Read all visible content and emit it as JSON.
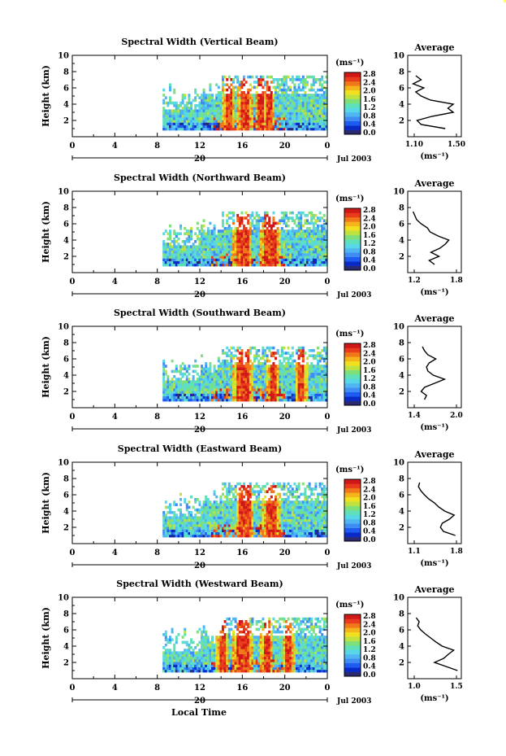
{
  "colors": {
    "colorbar": [
      "#2a2a72",
      "#0a2ac8",
      "#1e5bf0",
      "#3f8cf5",
      "#4fb6f2",
      "#58d8e6",
      "#5fe0b8",
      "#7fe07a",
      "#c0e23e",
      "#f0e020",
      "#f6b41c",
      "#f0781a",
      "#e83c1c",
      "#d01818"
    ],
    "background": "#ffffff",
    "line": "#000000"
  },
  "shared": {
    "colorbar_unit": "(ms⁻¹)",
    "colorbar_ticks": [
      "2.8",
      "2.4",
      "2.0",
      "1.6",
      "1.2",
      "0.8",
      "0.4",
      "0.0"
    ],
    "date_label": "Jul 2003",
    "day_label": "20",
    "x_axis_title": "Local Time",
    "avg_title": "Average",
    "avg_xlabel": "(ms⁻¹)"
  },
  "chart_data": [
    {
      "type": "heatmap",
      "title": "Spectral Width (Vertical Beam)",
      "ylabel": "Height (km)",
      "xlim": [
        0,
        24
      ],
      "ylim": [
        0,
        10
      ],
      "x_ticks": [
        "0",
        "4",
        "8",
        "12",
        "16",
        "20",
        "0"
      ],
      "y_ticks": [
        "2",
        "4",
        "6",
        "8",
        "10"
      ],
      "data_start_hour": 8.5,
      "data_top_km": 7.5,
      "red_streaks_hours": [
        14.6,
        16,
        16.3,
        17.7,
        18.4
      ],
      "average": {
        "x_ticks": [
          "1.10",
          "1.50"
        ],
        "xlim": [
          1.1,
          1.5
        ],
        "heights": [
          1.0,
          1.5,
          2.0,
          2.5,
          3.0,
          3.5,
          4.0,
          4.5,
          5.0,
          5.5,
          6.0,
          6.5,
          7.0,
          7.5
        ],
        "values": [
          1.38,
          1.2,
          1.17,
          1.28,
          1.44,
          1.4,
          1.44,
          1.27,
          1.2,
          1.16,
          1.22,
          1.14,
          1.2,
          1.16
        ]
      }
    },
    {
      "type": "heatmap",
      "title": "Spectral Width (Northward Beam)",
      "ylabel": "Height (km)",
      "xlim": [
        0,
        24
      ],
      "ylim": [
        0,
        10
      ],
      "x_ticks": [
        "0",
        "4",
        "8",
        "12",
        "16",
        "20",
        "0"
      ],
      "y_ticks": [
        "2",
        "4",
        "6",
        "8",
        "10"
      ],
      "data_start_hour": 8.5,
      "data_top_km": 7.5,
      "red_streaks_hours": [
        15.6,
        16.2,
        18.2,
        18.9
      ],
      "average": {
        "x_ticks": [
          "1.2",
          "1.8"
        ],
        "xlim": [
          1.2,
          1.8
        ],
        "heights": [
          1.0,
          1.5,
          2.0,
          2.5,
          3.0,
          3.5,
          4.0,
          4.5,
          5.0,
          5.5,
          6.0,
          6.5,
          7.0,
          7.5
        ],
        "values": [
          1.5,
          1.44,
          1.55,
          1.46,
          1.56,
          1.62,
          1.66,
          1.54,
          1.45,
          1.42,
          1.35,
          1.3,
          1.28,
          1.26
        ]
      }
    },
    {
      "type": "heatmap",
      "title": "Spectral Width (Southward Beam)",
      "ylabel": "Height (km)",
      "xlim": [
        0,
        24
      ],
      "ylim": [
        0,
        10
      ],
      "x_ticks": [
        "0",
        "4",
        "8",
        "12",
        "16",
        "20",
        "0"
      ],
      "y_ticks": [
        "2",
        "4",
        "6",
        "8",
        "10"
      ],
      "data_start_hour": 8.5,
      "data_top_km": 7.5,
      "red_streaks_hours": [
        15.6,
        16.3,
        18.8,
        21.5
      ],
      "average": {
        "x_ticks": [
          "1.4",
          "2.0"
        ],
        "xlim": [
          1.3,
          2.1
        ],
        "heights": [
          1.0,
          1.5,
          2.0,
          2.5,
          3.0,
          3.5,
          4.0,
          4.5,
          5.0,
          5.5,
          6.0,
          6.5,
          7.0,
          7.5
        ],
        "values": [
          1.55,
          1.58,
          1.5,
          1.55,
          1.7,
          1.85,
          1.68,
          1.6,
          1.58,
          1.62,
          1.72,
          1.6,
          1.55,
          1.52
        ]
      }
    },
    {
      "type": "heatmap",
      "title": "Spectral Width (Eastward Beam)",
      "ylabel": "Height (km)",
      "xlim": [
        0,
        24
      ],
      "ylim": [
        0,
        10
      ],
      "x_ticks": [
        "0",
        "4",
        "8",
        "12",
        "16",
        "20",
        "0"
      ],
      "y_ticks": [
        "2",
        "4",
        "6",
        "8",
        "10"
      ],
      "data_start_hour": 8.5,
      "data_top_km": 7.5,
      "red_streaks_hours": [
        15.9,
        16.4,
        18.4,
        18.9
      ],
      "average": {
        "x_ticks": [
          "1.1",
          "1.8"
        ],
        "xlim": [
          1.0,
          1.9
        ],
        "heights": [
          1.0,
          1.5,
          2.0,
          2.5,
          3.0,
          3.5,
          4.0,
          4.5,
          5.0,
          5.5,
          6.0,
          6.5,
          7.0,
          7.5
        ],
        "values": [
          1.8,
          1.6,
          1.55,
          1.58,
          1.7,
          1.78,
          1.62,
          1.52,
          1.45,
          1.35,
          1.28,
          1.22,
          1.18,
          1.2
        ]
      }
    },
    {
      "type": "heatmap",
      "title": "Spectral Width (Westward Beam)",
      "ylabel": "Height (km)",
      "xlim": [
        0,
        24
      ],
      "ylim": [
        0,
        10
      ],
      "x_ticks": [
        "0",
        "4",
        "8",
        "12",
        "16",
        "20",
        "0"
      ],
      "y_ticks": [
        "2",
        "4",
        "6",
        "8",
        "10"
      ],
      "data_start_hour": 8.5,
      "data_top_km": 7.5,
      "red_streaks_hours": [
        14.0,
        15.6,
        16.3,
        18.2,
        20.3
      ],
      "average": {
        "x_ticks": [
          "1.0",
          "1.5"
        ],
        "xlim": [
          0.95,
          1.65
        ],
        "heights": [
          1.0,
          1.5,
          2.0,
          2.5,
          3.0,
          3.5,
          4.0,
          4.5,
          5.0,
          5.5,
          6.0,
          6.5,
          7.0,
          7.5
        ],
        "values": [
          1.6,
          1.45,
          1.3,
          1.42,
          1.48,
          1.55,
          1.4,
          1.32,
          1.25,
          1.18,
          1.12,
          1.08,
          1.1,
          1.06
        ]
      }
    }
  ]
}
